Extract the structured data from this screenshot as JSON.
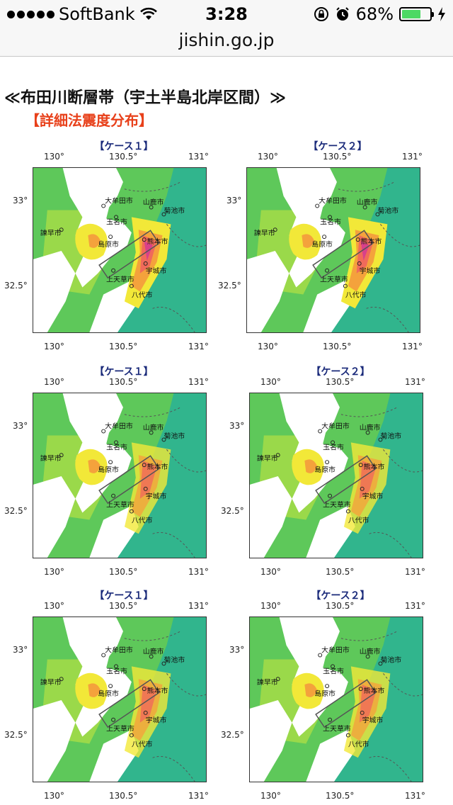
{
  "status_bar": {
    "carrier": "SoftBank",
    "time": "3:28",
    "battery_percent": "68%",
    "battery_level": 0.68
  },
  "browser": {
    "url": "jishin.go.jp"
  },
  "page": {
    "heading": "≪布田川断層帯（宇土半島北岸区間）≫",
    "subheading": "【詳細法震度分布】"
  },
  "colors": {
    "accent_red": "#e8401a",
    "case_label": "#1a2a7a",
    "teal": "#31b58d",
    "green": "#5ec85a",
    "light_green": "#9ad94a",
    "yellow": "#f2e838",
    "orange": "#f4a23c",
    "red": "#f06a5a",
    "magenta": "#d8408a"
  },
  "axis_ticks": {
    "x": [
      "130°",
      "130.5°",
      "131°"
    ],
    "y": [
      "33°",
      "32.5°"
    ]
  },
  "cities": [
    "大牟田市",
    "山鹿市",
    "菊池市",
    "玉名市",
    "諫早市",
    "島原市",
    "熊本市",
    "宇城市",
    "上天草市",
    "八代市"
  ],
  "panels": [
    {
      "case": "【ケース１】",
      "variant": 1
    },
    {
      "case": "【ケース２】",
      "variant": 2
    },
    {
      "case": "【ケース１】",
      "variant": 3
    },
    {
      "case": "【ケース２】",
      "variant": 4
    },
    {
      "case": "【ケース１】",
      "variant": 5
    },
    {
      "case": "【ケース２】",
      "variant": 6
    }
  ]
}
